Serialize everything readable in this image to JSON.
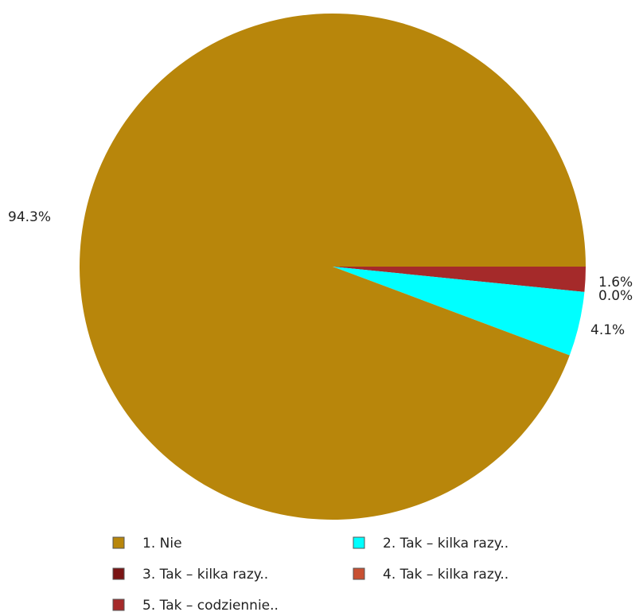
{
  "chart_data": {
    "type": "pie",
    "title": "",
    "start_angle_deg": 0,
    "direction": "clockwise-from-positive-x",
    "slices": [
      {
        "label": "1. Nie",
        "value": 94.3,
        "value_label": "94.3%",
        "color": "#b8860b"
      },
      {
        "label": "2. Tak – kilka razy..",
        "value": 4.1,
        "value_label": "4.1%",
        "color": "#00ffff"
      },
      {
        "label": "3. Tak – kilka razy..",
        "value": 0.0,
        "value_label": "0.0%",
        "color": "#7a1414"
      },
      {
        "label": "4. Tak – kilka razy..",
        "value": 0.0,
        "value_label": "0.0%",
        "color": "#c85032"
      },
      {
        "label": "5. Tak – codziennie..",
        "value": 1.6,
        "value_label": "1.6%",
        "color": "#a52a2a"
      }
    ],
    "legend": {
      "placement": "bottom",
      "columns": 2
    }
  }
}
